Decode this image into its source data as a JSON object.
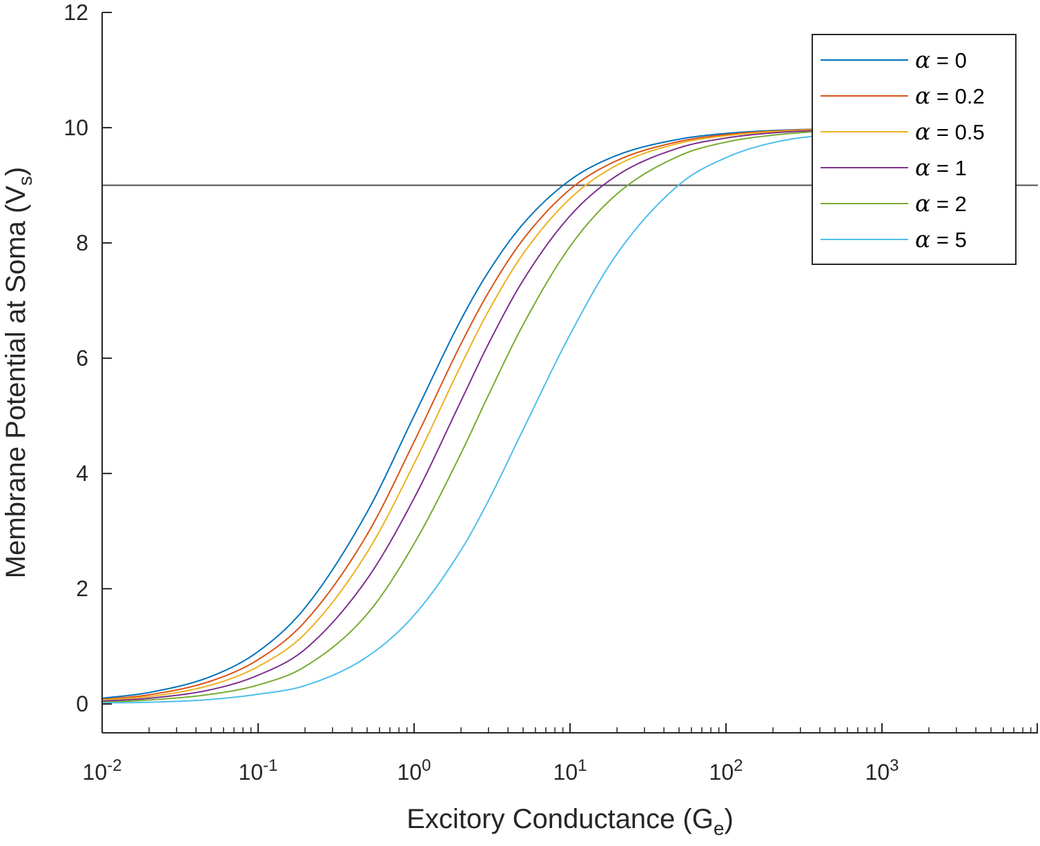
{
  "chart_data": {
    "type": "line",
    "xscale": "log",
    "xlim": [
      0.01,
      10000
    ],
    "ylim": [
      -0.5,
      12
    ],
    "xlabel": {
      "main": "Excitory Conductance (G",
      "sub": "e",
      "end": ")"
    },
    "ylabel": {
      "main": "Membrane Potential at Soma (V",
      "sub": "s",
      "end": ")"
    },
    "x_ticks": [
      {
        "value": 0.01,
        "base": "10",
        "exp": "-2"
      },
      {
        "value": 0.1,
        "base": "10",
        "exp": "-1"
      },
      {
        "value": 1,
        "base": "10",
        "exp": "0"
      },
      {
        "value": 10,
        "base": "10",
        "exp": "1"
      },
      {
        "value": 100,
        "base": "10",
        "exp": "2"
      },
      {
        "value": 1000,
        "base": "10",
        "exp": "3"
      }
    ],
    "y_ticks": [
      {
        "value": 0,
        "label": "0"
      },
      {
        "value": 2,
        "label": "2"
      },
      {
        "value": 4,
        "label": "4"
      },
      {
        "value": 6,
        "label": "6"
      },
      {
        "value": 8,
        "label": "8"
      },
      {
        "value": 10,
        "label": "10"
      },
      {
        "value": 12,
        "label": "12"
      }
    ],
    "reference_line": {
      "y": 9,
      "color": "#4d4d4d"
    },
    "x": [
      0.01,
      0.02,
      0.05,
      0.1,
      0.2,
      0.5,
      1,
      2,
      3,
      5,
      10,
      20,
      50,
      100,
      200,
      500,
      1000
    ],
    "series": [
      {
        "name": "α = 0",
        "alpha": "α",
        "label": " = 0",
        "color": "#0072BD",
        "values": [
          0.1,
          0.2,
          0.48,
          0.91,
          1.67,
          3.33,
          5.0,
          6.67,
          7.5,
          8.33,
          9.09,
          9.52,
          9.8,
          9.9,
          9.95,
          9.98,
          9.99
        ]
      },
      {
        "name": "α = 0.2",
        "alpha": "α",
        "label": " = 0.2",
        "color": "#D95319",
        "values": [
          0.08,
          0.16,
          0.4,
          0.77,
          1.43,
          2.94,
          4.55,
          6.25,
          7.14,
          8.06,
          8.93,
          9.43,
          9.76,
          9.88,
          9.94,
          9.98,
          9.99
        ]
      },
      {
        "name": "α = 0.5",
        "alpha": "α",
        "label": " = 0.5",
        "color": "#EDB120",
        "values": [
          0.07,
          0.13,
          0.33,
          0.65,
          1.22,
          2.63,
          4.17,
          5.88,
          6.82,
          7.81,
          8.77,
          9.35,
          9.73,
          9.86,
          9.93,
          9.97,
          9.99
        ]
      },
      {
        "name": "α = 1",
        "alpha": "α",
        "label": " = 1",
        "color": "#7E2F8E",
        "values": [
          0.05,
          0.1,
          0.25,
          0.5,
          0.95,
          2.17,
          3.57,
          5.26,
          6.25,
          7.35,
          8.47,
          9.17,
          9.65,
          9.82,
          9.91,
          9.96,
          9.98
        ]
      },
      {
        "name": "α = 2",
        "alpha": "α",
        "label": " = 2",
        "color": "#77AC30",
        "values": [
          0.03,
          0.07,
          0.17,
          0.33,
          0.65,
          1.56,
          2.78,
          4.35,
          5.36,
          6.58,
          7.94,
          8.85,
          9.51,
          9.75,
          9.87,
          9.95,
          9.97
        ]
      },
      {
        "name": "α = 5",
        "alpha": "α",
        "label": " = 5",
        "color": "#4DBEEE",
        "values": [
          0.02,
          0.03,
          0.08,
          0.17,
          0.32,
          0.82,
          1.54,
          2.67,
          3.53,
          4.76,
          6.41,
          7.81,
          9.01,
          9.48,
          9.74,
          9.89,
          9.94
        ]
      }
    ],
    "legend": {
      "position": "top-right"
    },
    "grid": false
  }
}
